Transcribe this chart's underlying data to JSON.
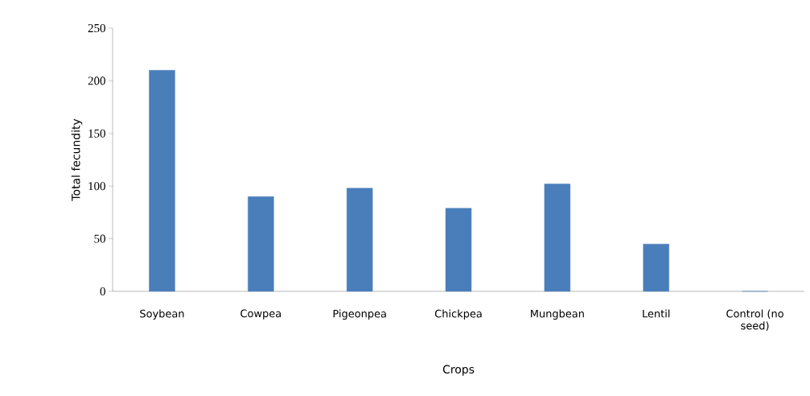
{
  "chart_data": {
    "type": "bar",
    "xlabel": "Crops",
    "ylabel": "Total fecundity",
    "categories": [
      "Soybean",
      "Cowpea",
      "Pigeonpea",
      "Chickpea",
      "Mungbean",
      "Lentil",
      "Control (no seed)"
    ],
    "values": [
      210,
      90,
      98,
      79,
      102,
      45,
      0
    ],
    "color": "#4a7ebb",
    "ylim": [
      0,
      250
    ],
    "yticks": [
      0,
      50,
      100,
      150,
      200,
      250
    ],
    "grid": false,
    "legend": false
  }
}
